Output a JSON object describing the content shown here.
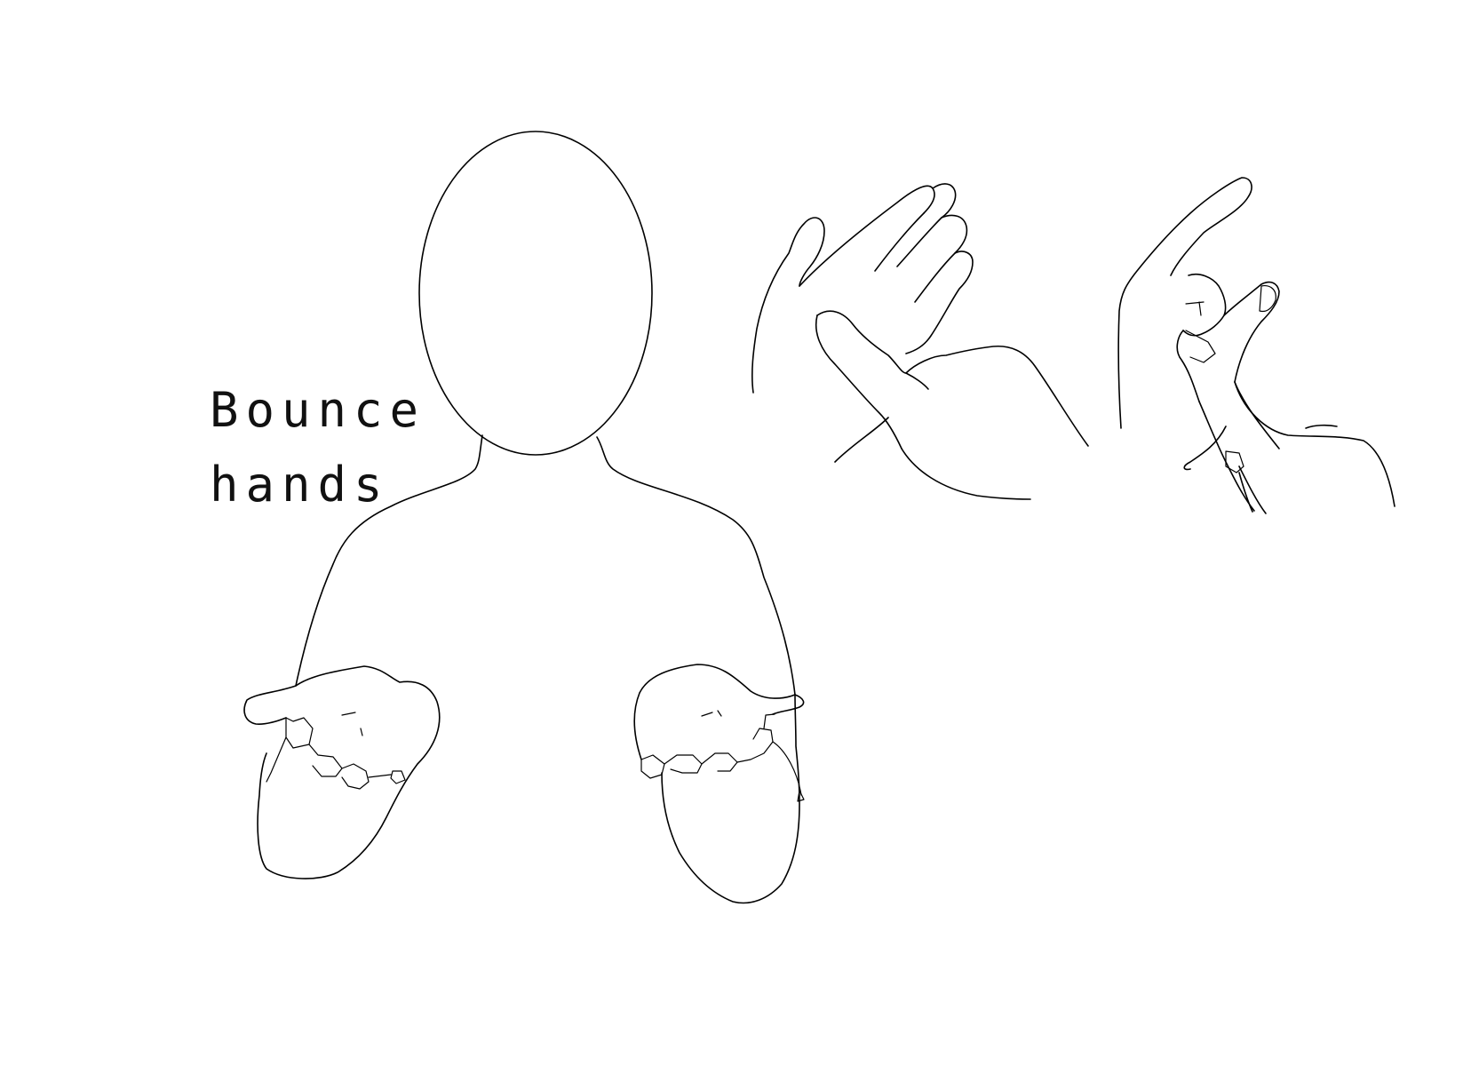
{
  "caption": {
    "line1": "Bounce",
    "line2": "hands"
  },
  "figures": [
    {
      "icon": "signer-body-icon"
    },
    {
      "icon": "open-palm-hand-icon"
    },
    {
      "icon": "pinch-hand-icon"
    }
  ],
  "colors": {
    "background": "#ffffff",
    "line": "#000000"
  }
}
